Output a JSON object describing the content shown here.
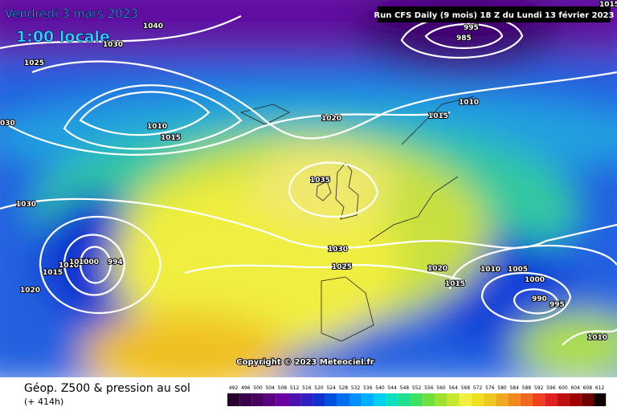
{
  "header": {
    "date": "Vendredi 3 mars 2023",
    "time": "1:00 locale",
    "run": "Run CFS Daily (9 mois) 18 Z du Lundi 13 février 2023"
  },
  "copyright": "Copyright © 2023 Meteociel.fr",
  "footer": {
    "title": "Géop. Z500 & pression au sol",
    "lead": "(+ 414h)"
  },
  "isobar_labels": [
    "1040",
    "1030",
    "1025",
    "030",
    "1010",
    "1015",
    "1020",
    "1015",
    "1010",
    "995",
    "985",
    "1015",
    "1035",
    "1030",
    "1030",
    "1025",
    "1020",
    "1015",
    "1010",
    "1005",
    "1000",
    "990",
    "995",
    "1010",
    "1020",
    "1015",
    "1010",
    "1005",
    "1000",
    "994"
  ],
  "legend": [
    "492",
    "496",
    "500",
    "504",
    "508",
    "512",
    "516",
    "520",
    "524",
    "528",
    "532",
    "536",
    "540",
    "544",
    "548",
    "552",
    "556",
    "560",
    "564",
    "568",
    "572",
    "576",
    "580",
    "584",
    "588",
    "592",
    "596",
    "600",
    "604",
    "608",
    "612"
  ]
}
